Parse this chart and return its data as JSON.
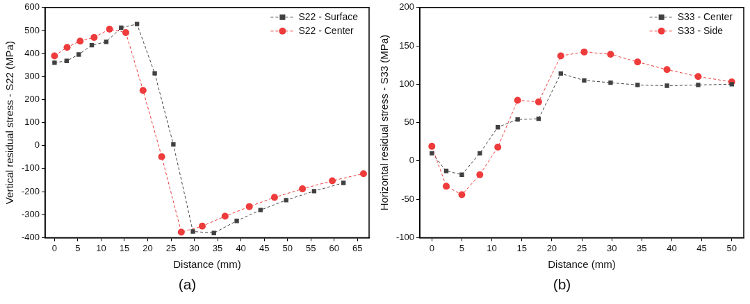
{
  "chart_data": [
    {
      "type": "line",
      "xlabel": "Distance (mm)",
      "ylabel": "Vertical residual stress - S22 (MPa)",
      "annotations": [
        "(a)"
      ],
      "line_style": "dashed",
      "grid": false,
      "legend": "top right",
      "xlim": [
        -2,
        67.5
      ],
      "xticks": [
        0,
        5,
        10,
        15,
        20,
        25,
        30,
        35,
        40,
        45,
        50,
        55,
        60,
        65
      ],
      "ylim": [
        -400,
        600
      ],
      "yticks": [
        -400,
        -300,
        -200,
        -100,
        0,
        100,
        200,
        300,
        400,
        500,
        600
      ],
      "series": [
        {
          "name": "S22 - Surface",
          "color": "#404040",
          "marker": "square",
          "x": [
            0,
            2.6,
            5.2,
            8.0,
            11.1,
            14.3,
            17.7,
            21.5,
            25.5,
            29.7,
            34.2,
            39.1,
            44.2,
            49.7,
            55.7,
            62.0
          ],
          "values": [
            360,
            368,
            396,
            436,
            451,
            512,
            528,
            314,
            5,
            -373,
            -380,
            -327,
            -280,
            -237,
            -198,
            -162
          ]
        },
        {
          "name": "S22 - Center",
          "color": "#ee3b3b",
          "marker": "circle",
          "x": [
            0,
            2.7,
            5.5,
            8.5,
            11.8,
            15.3,
            19.0,
            23.0,
            27.2,
            31.7,
            36.6,
            41.8,
            47.2,
            53.2,
            59.6,
            66.3
          ],
          "values": [
            390,
            427,
            454,
            470,
            506,
            491,
            240,
            -48,
            -376,
            -350,
            -307,
            -265,
            -225,
            -188,
            -153,
            -122
          ]
        }
      ]
    },
    {
      "type": "line",
      "xlabel": "Distance (mm)",
      "ylabel": "Horizontal residual stress - S33 (MPa)",
      "annotations": [
        "(b)"
      ],
      "line_style": "dashed",
      "grid": false,
      "legend": "top right",
      "xlim": [
        -2,
        52
      ],
      "xticks": [
        0,
        5,
        10,
        15,
        20,
        25,
        30,
        35,
        40,
        45,
        50
      ],
      "ylim": [
        -100,
        200
      ],
      "yticks": [
        -100,
        -50,
        0,
        50,
        100,
        150,
        200
      ],
      "series": [
        {
          "name": "S33 - Center",
          "color": "#404040",
          "marker": "square",
          "x": [
            0,
            2.4,
            5.0,
            8.0,
            11.0,
            14.3,
            17.8,
            21.5,
            25.4,
            29.8,
            34.3,
            39.2,
            44.4,
            50.0
          ],
          "values": [
            10,
            -13,
            -18,
            10,
            44,
            54,
            55,
            114,
            105,
            102,
            99,
            98,
            99,
            100
          ]
        },
        {
          "name": "S33 - Side",
          "color": "#ee3b3b",
          "marker": "circle",
          "x": [
            0,
            2.4,
            5.0,
            8.0,
            11.0,
            14.3,
            17.8,
            21.5,
            25.4,
            29.8,
            34.3,
            39.2,
            44.4,
            50.0
          ],
          "values": [
            19,
            -33,
            -44,
            -18,
            18,
            79,
            77,
            137,
            142,
            139,
            129,
            119,
            110,
            103
          ]
        }
      ]
    }
  ]
}
